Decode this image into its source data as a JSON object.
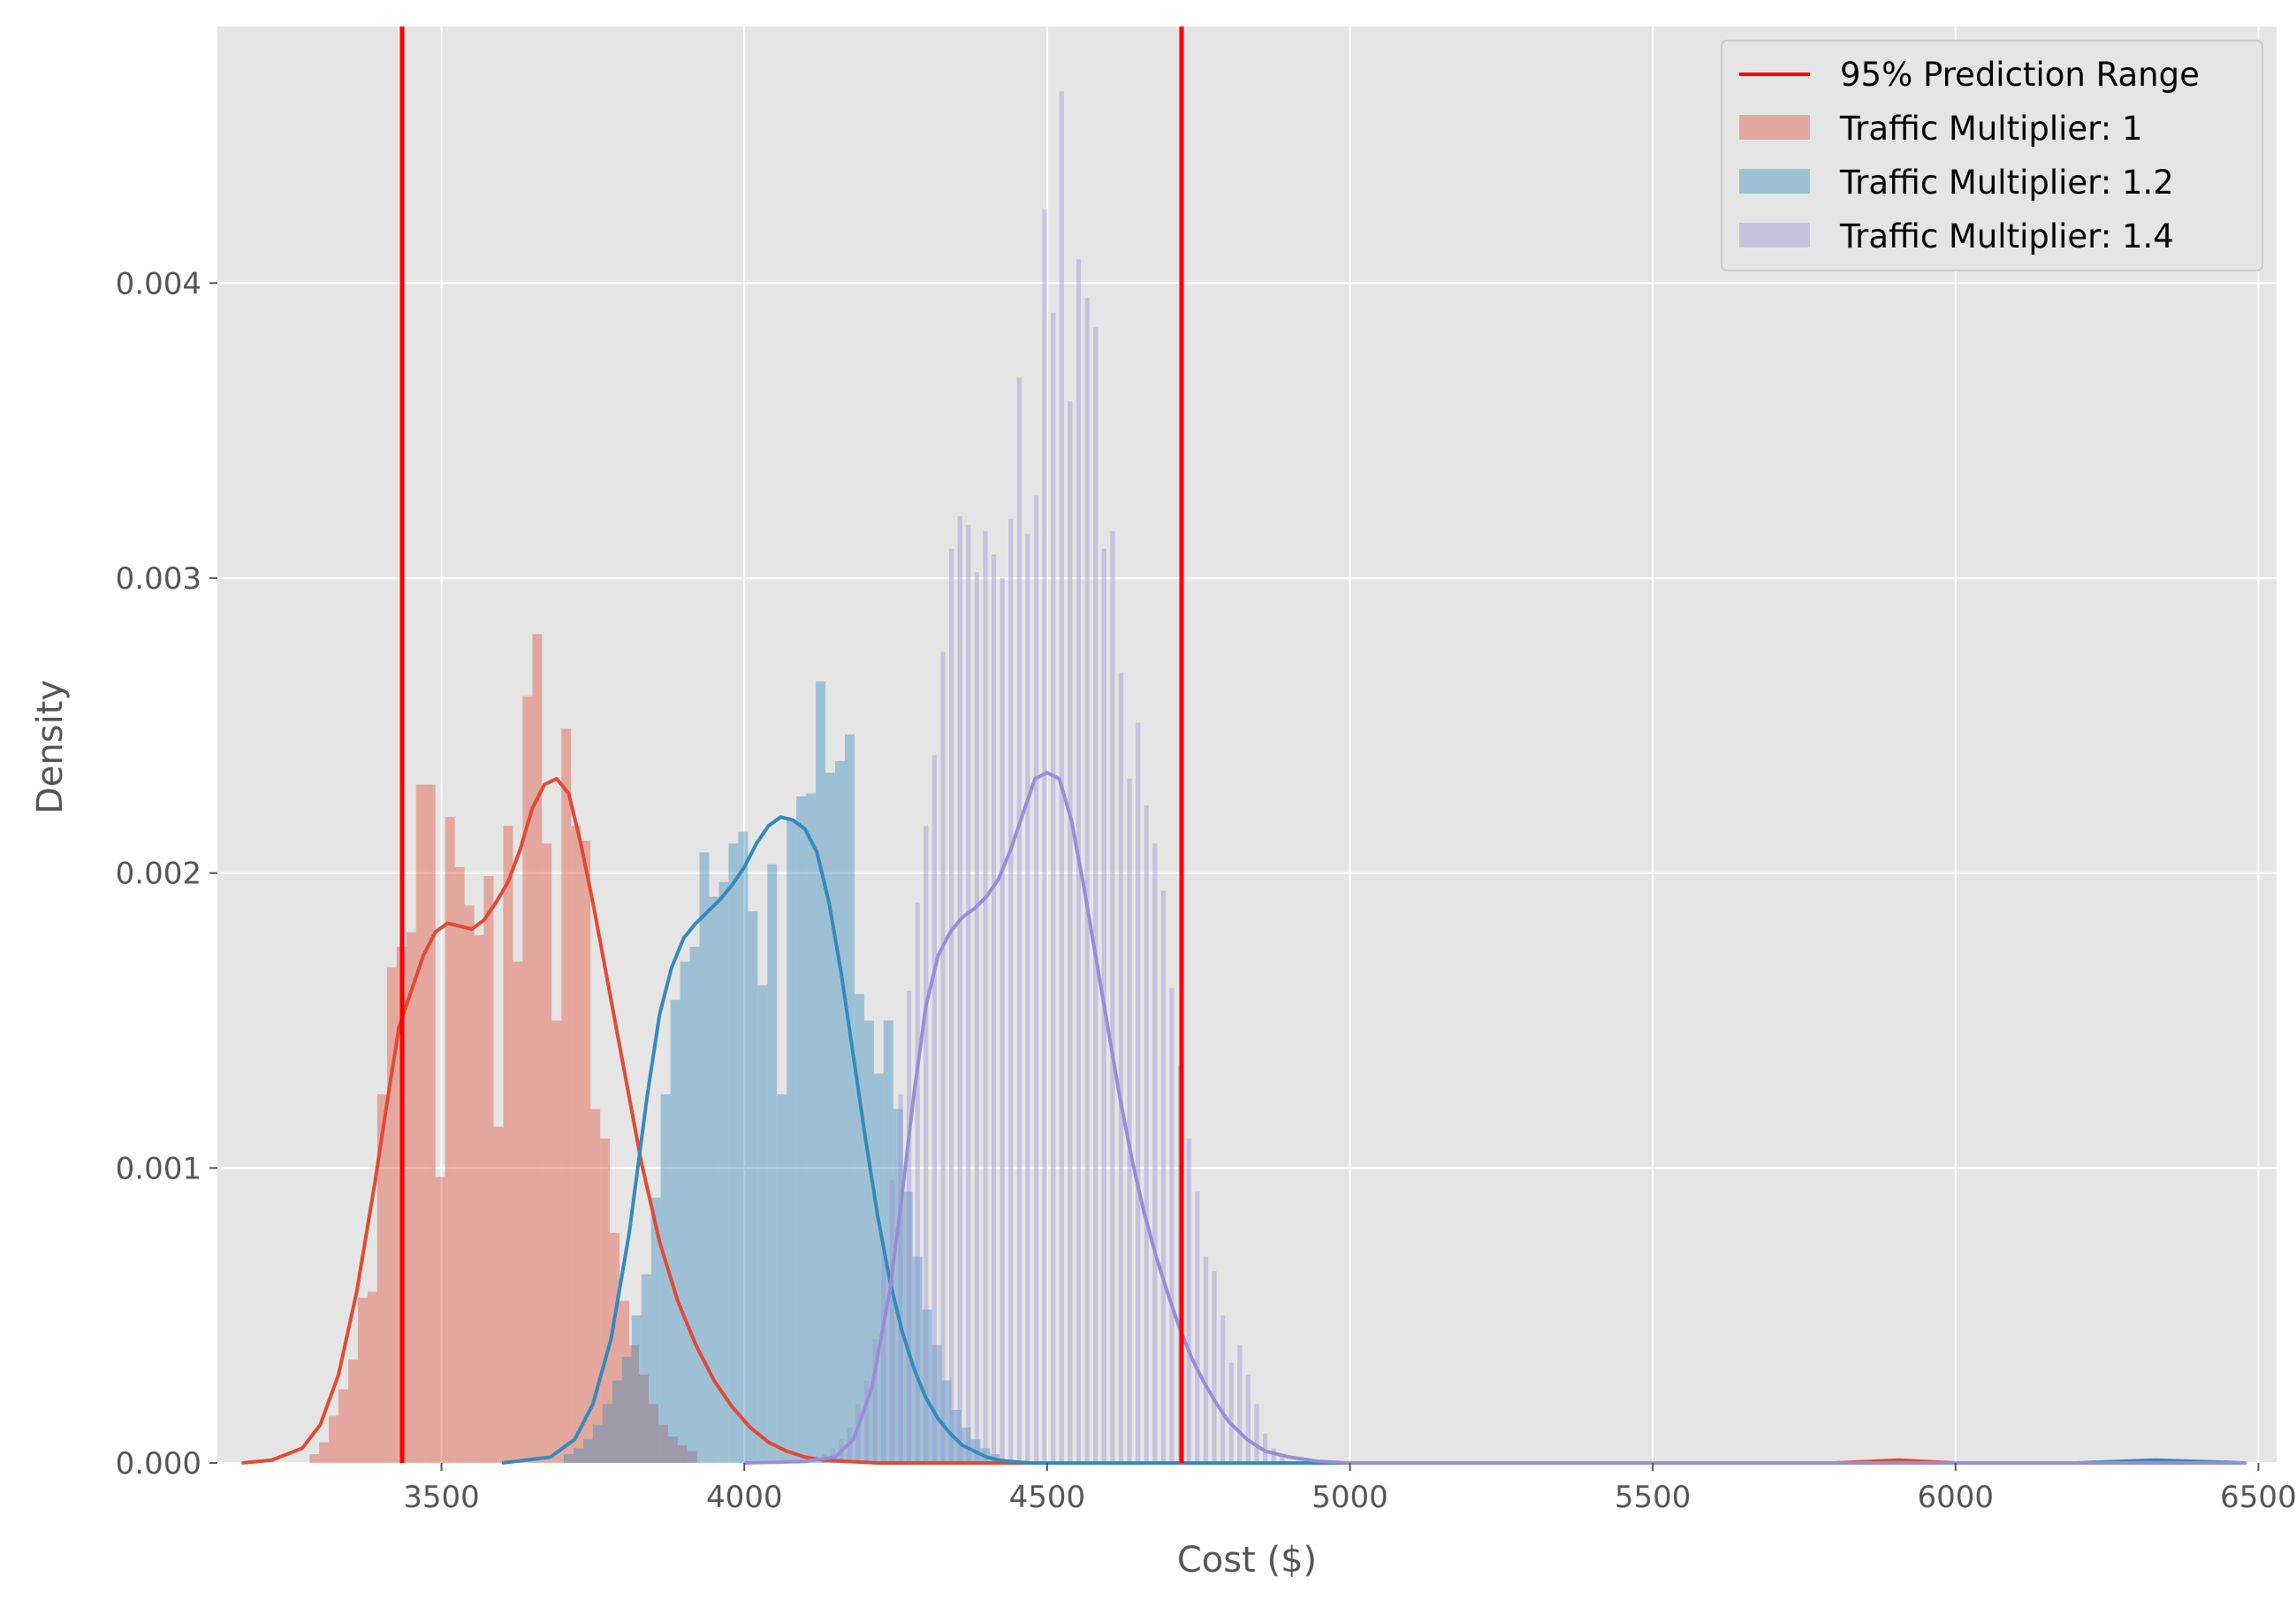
{
  "chart_data": {
    "type": "histogram-kde",
    "title": "",
    "xlabel": "Cost ($)",
    "ylabel": "Density",
    "xlim": [
      3130,
      6530
    ],
    "ylim": [
      0,
      0.00487
    ],
    "xticks": [
      3500,
      4000,
      4500,
      5000,
      5500,
      6000,
      6500
    ],
    "xtick_labels": [
      "3500",
      "4000",
      "4500",
      "5000",
      "5500",
      "6000",
      "6500"
    ],
    "yticks": [
      0,
      0.001,
      0.002,
      0.003,
      0.004
    ],
    "ytick_labels": [
      "0.000",
      "0.001",
      "0.002",
      "0.003",
      "0.004"
    ],
    "grid": true,
    "legend_position": "top-right",
    "prediction_range": {
      "name": "95% Prediction Range",
      "color": "#ff0000",
      "lower": 3435,
      "upper": 4722
    },
    "series": [
      {
        "name": "Traffic Multiplier: 1",
        "color": "#E24A33",
        "hist_bins": [
          [
            3290,
            3e-05
          ],
          [
            3306,
            7e-05
          ],
          [
            3322,
            0.00016
          ],
          [
            3338,
            0.00025
          ],
          [
            3354,
            0.00035
          ],
          [
            3370,
            0.00056
          ],
          [
            3386,
            0.00058
          ],
          [
            3402,
            0.00125
          ],
          [
            3418,
            0.00168
          ],
          [
            3434,
            0.00175
          ],
          [
            3450,
            0.0018
          ],
          [
            3466,
            0.0023
          ],
          [
            3482,
            0.0023
          ],
          [
            3498,
            0.00097
          ],
          [
            3514,
            0.00219
          ],
          [
            3530,
            0.00202
          ],
          [
            3546,
            0.00189
          ],
          [
            3562,
            0.00179
          ],
          [
            3578,
            0.00199
          ],
          [
            3594,
            0.00114
          ],
          [
            3610,
            0.00216
          ],
          [
            3626,
            0.0017
          ],
          [
            3642,
            0.0026
          ],
          [
            3658,
            0.00281
          ],
          [
            3674,
            0.0021
          ],
          [
            3690,
            0.0015
          ],
          [
            3706,
            0.00249
          ],
          [
            3722,
            0.00216
          ],
          [
            3738,
            0.00211
          ],
          [
            3754,
            0.0012
          ],
          [
            3770,
            0.0011
          ],
          [
            3786,
            0.00078
          ],
          [
            3802,
            0.00055
          ],
          [
            3818,
            0.0004
          ],
          [
            3834,
            0.0003
          ],
          [
            3850,
            0.0002
          ],
          [
            3866,
            0.00013
          ],
          [
            3882,
            9e-05
          ],
          [
            3898,
            6e-05
          ],
          [
            3914,
            4e-05
          ],
          [
            5906,
            1e-05
          ]
        ],
        "kde_x": [
          3170,
          3220,
          3270,
          3300,
          3330,
          3360,
          3390,
          3410,
          3430,
          3450,
          3470,
          3490,
          3510,
          3530,
          3550,
          3570,
          3590,
          3610,
          3630,
          3650,
          3670,
          3690,
          3710,
          3730,
          3750,
          3770,
          3800,
          3830,
          3860,
          3890,
          3920,
          3950,
          3980,
          4010,
          4040,
          4070,
          4100,
          4130,
          4170,
          4220,
          4300,
          4500,
          5000,
          5800,
          5906,
          6000,
          6480
        ],
        "kde_y": [
          0.0,
          1e-05,
          5e-05,
          0.00013,
          0.0003,
          0.00058,
          0.00095,
          0.00122,
          0.00148,
          0.0016,
          0.00172,
          0.0018,
          0.00183,
          0.00182,
          0.00181,
          0.00184,
          0.0019,
          0.00197,
          0.00208,
          0.00222,
          0.0023,
          0.00232,
          0.00227,
          0.0021,
          0.0019,
          0.00168,
          0.00135,
          0.00102,
          0.00075,
          0.00055,
          0.0004,
          0.00028,
          0.00019,
          0.00012,
          7e-05,
          4e-05,
          2e-05,
          1e-05,
          5e-06,
          0.0,
          0.0,
          0.0,
          0.0,
          0.0,
          1e-05,
          0.0,
          0.0
        ]
      },
      {
        "name": "Traffic Multiplier: 1.2",
        "color": "#348ABD",
        "hist_bins": [
          [
            3710,
            3e-05
          ],
          [
            3726,
            5e-05
          ],
          [
            3742,
            8e-05
          ],
          [
            3758,
            0.00013
          ],
          [
            3774,
            0.0002
          ],
          [
            3790,
            0.00028
          ],
          [
            3806,
            0.00036
          ],
          [
            3822,
            0.0005
          ],
          [
            3838,
            0.00064
          ],
          [
            3854,
            0.0009
          ],
          [
            3870,
            0.00125
          ],
          [
            3886,
            0.00157
          ],
          [
            3902,
            0.0017
          ],
          [
            3918,
            0.00175
          ],
          [
            3934,
            0.00207
          ],
          [
            3950,
            0.00192
          ],
          [
            3966,
            0.00197
          ],
          [
            3982,
            0.0021
          ],
          [
            3998,
            0.00214
          ],
          [
            4014,
            0.00187
          ],
          [
            4030,
            0.00162
          ],
          [
            4046,
            0.00203
          ],
          [
            4062,
            0.00125
          ],
          [
            4078,
            0.00218
          ],
          [
            4094,
            0.00226
          ],
          [
            4110,
            0.00227
          ],
          [
            4126,
            0.00265
          ],
          [
            4142,
            0.00234
          ],
          [
            4158,
            0.00238
          ],
          [
            4174,
            0.00247
          ],
          [
            4190,
            0.00159
          ],
          [
            4206,
            0.0015
          ],
          [
            4222,
            0.00132
          ],
          [
            4238,
            0.0015
          ],
          [
            4254,
            0.0012
          ],
          [
            4270,
            0.00092
          ],
          [
            4286,
            0.0007
          ],
          [
            4302,
            0.00052
          ],
          [
            4318,
            0.0004
          ],
          [
            4334,
            0.00028
          ],
          [
            4350,
            0.00018
          ],
          [
            4366,
            0.00012
          ],
          [
            4382,
            8e-05
          ],
          [
            4398,
            5e-05
          ],
          [
            4414,
            3e-05
          ],
          [
            6330,
            1e-05
          ]
        ],
        "kde_x": [
          3600,
          3680,
          3720,
          3750,
          3780,
          3810,
          3840,
          3860,
          3880,
          3900,
          3920,
          3940,
          3960,
          3980,
          4000,
          4020,
          4040,
          4060,
          4080,
          4100,
          4120,
          4140,
          4160,
          4180,
          4200,
          4220,
          4240,
          4260,
          4280,
          4300,
          4320,
          4340,
          4360,
          4380,
          4400,
          4420,
          4440,
          4470,
          4500,
          4550,
          4600,
          4700,
          5000,
          6200,
          6330,
          6480
        ],
        "kde_y": [
          0.0,
          2e-05,
          8e-05,
          0.0002,
          0.00042,
          0.00078,
          0.00125,
          0.00152,
          0.00168,
          0.00178,
          0.00183,
          0.00187,
          0.00191,
          0.00196,
          0.00202,
          0.0021,
          0.00216,
          0.00219,
          0.00218,
          0.00215,
          0.00207,
          0.0019,
          0.00166,
          0.00138,
          0.0011,
          0.00084,
          0.00062,
          0.00045,
          0.00032,
          0.00022,
          0.00015,
          0.0001,
          6e-05,
          4e-05,
          2e-05,
          1e-05,
          5e-06,
          0.0,
          0.0,
          0.0,
          0.0,
          0.0,
          0.0,
          0.0,
          1e-05,
          0.0
        ]
      },
      {
        "name": "Traffic Multiplier: 1.4",
        "color": "#988ED5",
        "hist_bins": [
          [
            4132,
            3e-05
          ],
          [
            4146,
            5e-05
          ],
          [
            4160,
            8e-05
          ],
          [
            4174,
            0.00012
          ],
          [
            4188,
            0.0002
          ],
          [
            4202,
            0.00028
          ],
          [
            4216,
            0.00042
          ],
          [
            4230,
            0.0007
          ],
          [
            4244,
            0.00096
          ],
          [
            4258,
            0.00125
          ],
          [
            4272,
            0.0016
          ],
          [
            4286,
            0.0019
          ],
          [
            4300,
            0.00216
          ],
          [
            4314,
            0.0024
          ],
          [
            4328,
            0.00275
          ],
          [
            4342,
            0.0031
          ],
          [
            4356,
            0.00321
          ],
          [
            4370,
            0.00318
          ],
          [
            4384,
            0.00302
          ],
          [
            4398,
            0.00316
          ],
          [
            4412,
            0.00308
          ],
          [
            4426,
            0.003
          ],
          [
            4440,
            0.0032
          ],
          [
            4454,
            0.00368
          ],
          [
            4468,
            0.00315
          ],
          [
            4482,
            0.00328
          ],
          [
            4496,
            0.00425
          ],
          [
            4510,
            0.0039
          ],
          [
            4524,
            0.00465
          ],
          [
            4538,
            0.0036
          ],
          [
            4552,
            0.00408
          ],
          [
            4566,
            0.00395
          ],
          [
            4580,
            0.00385
          ],
          [
            4594,
            0.0031
          ],
          [
            4608,
            0.00316
          ],
          [
            4622,
            0.00268
          ],
          [
            4636,
            0.00232
          ],
          [
            4650,
            0.00251
          ],
          [
            4664,
            0.00223
          ],
          [
            4678,
            0.0021
          ],
          [
            4692,
            0.00194
          ],
          [
            4706,
            0.00161
          ],
          [
            4720,
            0.00135
          ],
          [
            4734,
            0.0011
          ],
          [
            4748,
            0.00092
          ],
          [
            4762,
            0.0007
          ],
          [
            4776,
            0.00065
          ],
          [
            4790,
            0.0005
          ],
          [
            4804,
            0.00034
          ],
          [
            4818,
            0.0004
          ],
          [
            4832,
            0.0003
          ],
          [
            4846,
            0.0002
          ],
          [
            4860,
            0.0001
          ],
          [
            4874,
            5e-05
          ],
          [
            4888,
            3e-05
          ]
        ],
        "kde_x": [
          4000,
          4100,
          4150,
          4180,
          4210,
          4240,
          4260,
          4280,
          4300,
          4320,
          4340,
          4360,
          4380,
          4400,
          4420,
          4440,
          4460,
          4480,
          4500,
          4520,
          4540,
          4560,
          4580,
          4600,
          4620,
          4640,
          4660,
          4680,
          4700,
          4720,
          4740,
          4760,
          4780,
          4800,
          4830,
          4860,
          4900,
          4950,
          5000,
          5100,
          6480
        ],
        "kde_y": [
          0.0,
          5e-06,
          2e-05,
          8e-05,
          0.00025,
          0.00058,
          0.0009,
          0.00125,
          0.00155,
          0.00172,
          0.0018,
          0.00185,
          0.00188,
          0.00192,
          0.00198,
          0.00208,
          0.0022,
          0.00232,
          0.00234,
          0.00232,
          0.00218,
          0.00196,
          0.00172,
          0.00148,
          0.00124,
          0.00103,
          0.00085,
          0.0007,
          0.00057,
          0.00045,
          0.00035,
          0.00027,
          0.0002,
          0.00014,
          8e-05,
          4e-05,
          2e-05,
          5e-06,
          0.0,
          0.0,
          0.0
        ]
      }
    ]
  }
}
